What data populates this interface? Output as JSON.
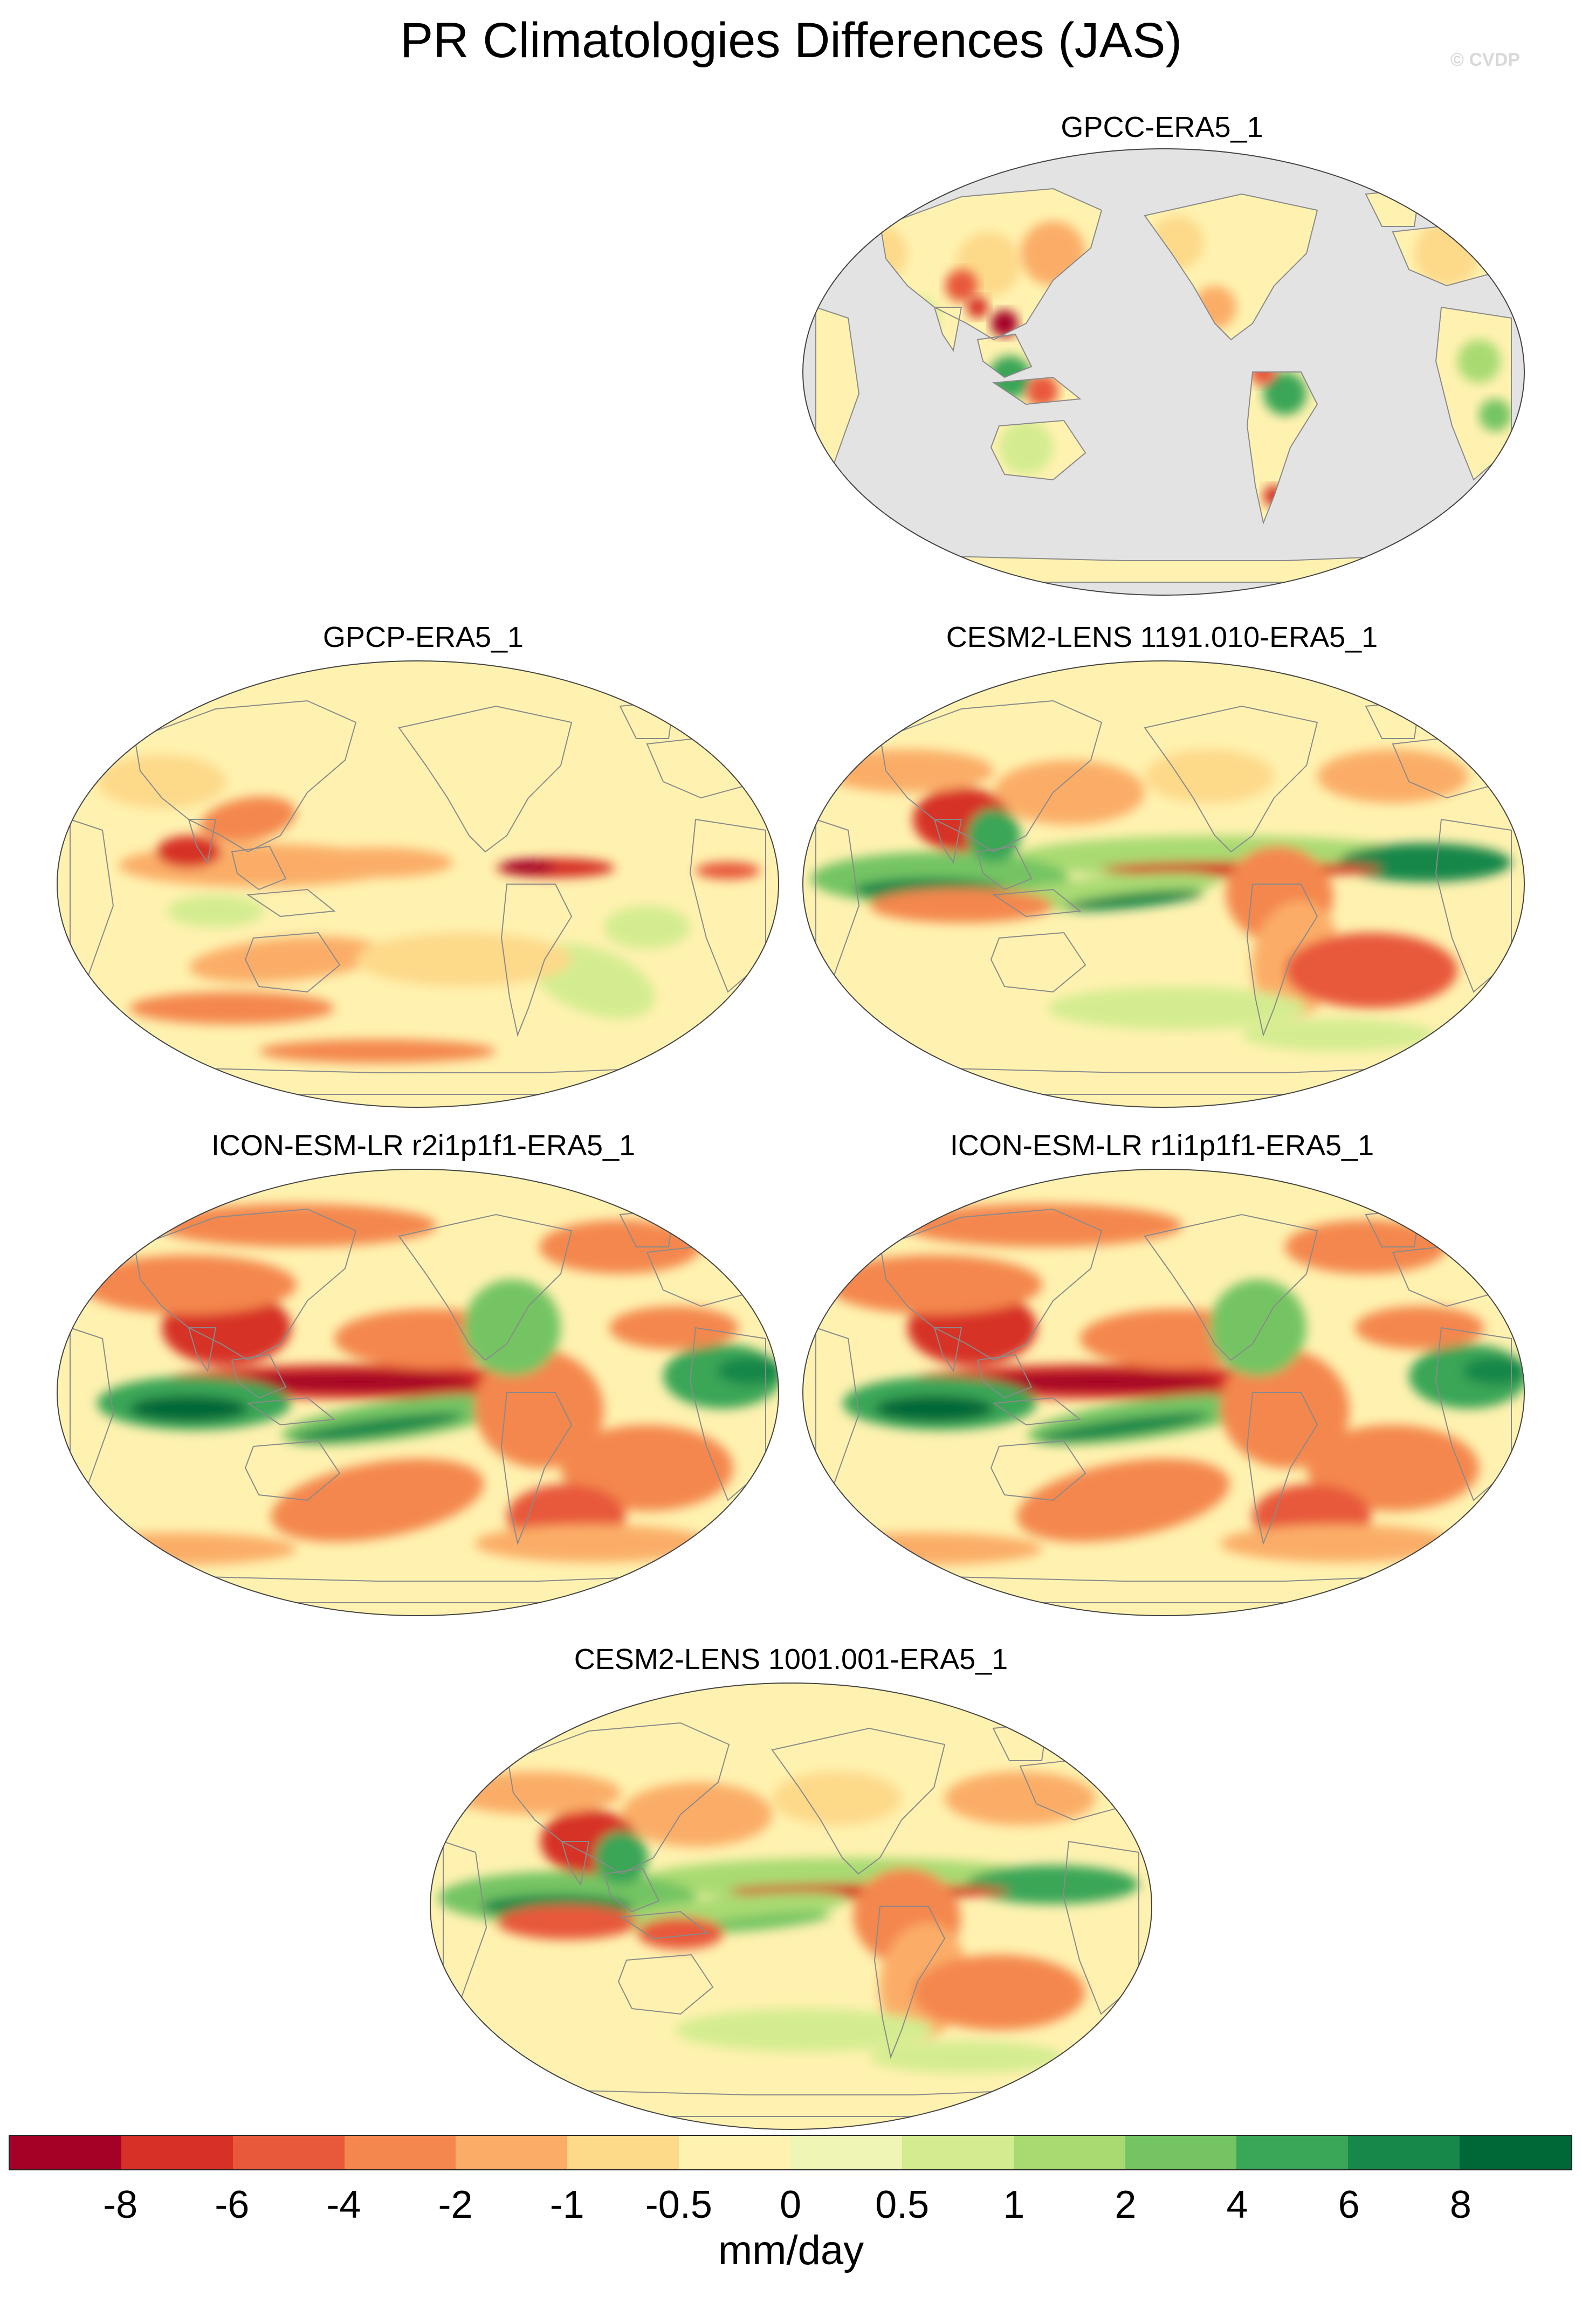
{
  "figure": {
    "title": "PR Climatologies Differences (JAS)",
    "watermark": "© CVDP"
  },
  "panels": [
    {
      "id": "p1",
      "title": "GPCC-ERA5_1",
      "land_only": true
    },
    {
      "id": "p2",
      "title": "GPCP-ERA5_1"
    },
    {
      "id": "p3",
      "title": "CESM2-LENS 1191.010-ERA5_1"
    },
    {
      "id": "p4",
      "title": "ICON-ESM-LR r2i1p1f1-ERA5_1"
    },
    {
      "id": "p5",
      "title": "ICON-ESM-LR r1i1p1f1-ERA5_1"
    },
    {
      "id": "p6",
      "title": "CESM2-LENS 1001.001-ERA5_1"
    }
  ],
  "colorbar": {
    "units": "mm/day",
    "tick_labels": [
      "-8",
      "-6",
      "-4",
      "-2",
      "-1",
      "-0.5",
      "0",
      "0.5",
      "1",
      "2",
      "4",
      "6",
      "8"
    ],
    "colors": [
      "#a50026",
      "#d73027",
      "#e8593b",
      "#f4874e",
      "#fbad68",
      "#fdd98a",
      "#fff2b0",
      "#eef5b5",
      "#d4ec90",
      "#a9da72",
      "#74c464",
      "#3aa657",
      "#17874a",
      "#006837"
    ]
  },
  "palette": {
    "ocean_missing": "#e3e3e3",
    "coastline": "#8a8a8a",
    "map_border": "#444444"
  }
}
